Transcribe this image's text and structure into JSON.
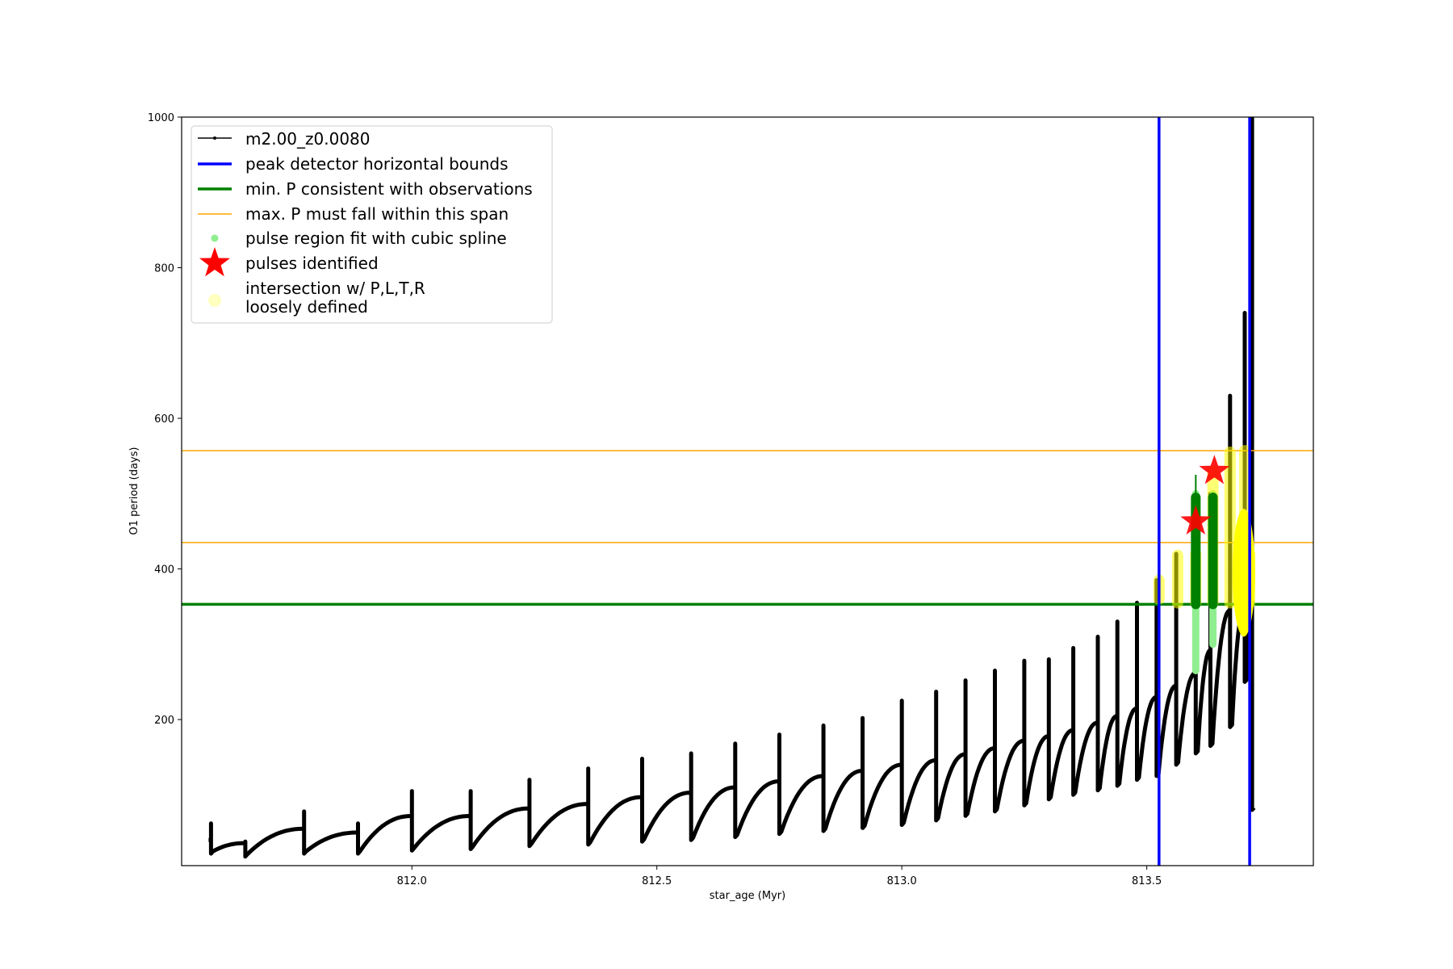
{
  "chart_data": {
    "type": "line",
    "xlabel": "star_age (Myr)",
    "ylabel": "O1 period (days)",
    "xlim": [
      811.53,
      813.84
    ],
    "ylim": [
      6,
      1000
    ],
    "x_ticks": [
      812.0,
      812.5,
      813.0,
      813.5
    ],
    "x_tick_labels": [
      "812.0",
      "812.5",
      "813.0",
      "813.5"
    ],
    "y_ticks": [
      200,
      400,
      600,
      800,
      1000
    ],
    "y_tick_labels": [
      "200",
      "400",
      "600",
      "800",
      "1000"
    ],
    "grid": false,
    "legend_position": "upper-left",
    "legend": [
      {
        "label": "m2.00_z0.0080",
        "kind": "line-marker",
        "color": "#000000"
      },
      {
        "label": "peak detector horizontal bounds",
        "kind": "line",
        "color": "#0000ff"
      },
      {
        "label": "min. P consistent with observations",
        "kind": "line",
        "color": "#008000"
      },
      {
        "label": "max. P must fall within this span",
        "kind": "thin-line",
        "color": "#ffa500"
      },
      {
        "label": "pulse region fit with cubic spline",
        "kind": "dot",
        "color": "#90ee90"
      },
      {
        "label": "pulses identified",
        "kind": "star",
        "color": "#ff0000"
      },
      {
        "label_lines": [
          "intersection w/ P,L,T,R",
          "loosely defined"
        ],
        "kind": "dot",
        "color": "#ffffc0"
      }
    ],
    "series_name": "m2.00_z0.0080",
    "pulses": [
      {
        "x": 811.59,
        "base": 40,
        "min": 22,
        "peak": 62,
        "end": 35
      },
      {
        "x": 811.66,
        "base": 36,
        "min": 18,
        "peak": 38,
        "end": 37
      },
      {
        "x": 811.78,
        "base": 55,
        "min": 22,
        "peak": 78,
        "end": 55
      },
      {
        "x": 811.89,
        "base": 50,
        "min": 22,
        "peak": 62,
        "end": 50
      },
      {
        "x": 812.0,
        "base": 72,
        "min": 26,
        "peak": 105,
        "end": 72
      },
      {
        "x": 812.12,
        "base": 72,
        "min": 28,
        "peak": 105,
        "end": 72
      },
      {
        "x": 812.24,
        "base": 82,
        "min": 32,
        "peak": 120,
        "end": 82
      },
      {
        "x": 812.36,
        "base": 88,
        "min": 34,
        "peak": 135,
        "end": 88
      },
      {
        "x": 812.47,
        "base": 97,
        "min": 38,
        "peak": 148,
        "end": 97
      },
      {
        "x": 812.57,
        "base": 103,
        "min": 40,
        "peak": 155,
        "end": 103
      },
      {
        "x": 812.66,
        "base": 110,
        "min": 44,
        "peak": 168,
        "end": 110
      },
      {
        "x": 812.75,
        "base": 118,
        "min": 48,
        "peak": 180,
        "end": 118
      },
      {
        "x": 812.84,
        "base": 125,
        "min": 52,
        "peak": 192,
        "end": 125
      },
      {
        "x": 812.92,
        "base": 132,
        "min": 56,
        "peak": 202,
        "end": 132
      },
      {
        "x": 813.0,
        "base": 140,
        "min": 60,
        "peak": 225,
        "end": 140
      },
      {
        "x": 813.07,
        "base": 146,
        "min": 66,
        "peak": 237,
        "end": 146
      },
      {
        "x": 813.13,
        "base": 154,
        "min": 72,
        "peak": 252,
        "end": 154
      },
      {
        "x": 813.19,
        "base": 162,
        "min": 78,
        "peak": 265,
        "end": 162
      },
      {
        "x": 813.25,
        "base": 172,
        "min": 86,
        "peak": 278,
        "end": 172
      },
      {
        "x": 813.3,
        "base": 178,
        "min": 94,
        "peak": 280,
        "end": 178
      },
      {
        "x": 813.35,
        "base": 186,
        "min": 100,
        "peak": 295,
        "end": 186
      },
      {
        "x": 813.4,
        "base": 196,
        "min": 106,
        "peak": 310,
        "end": 196
      },
      {
        "x": 813.44,
        "base": 205,
        "min": 112,
        "peak": 330,
        "end": 205
      },
      {
        "x": 813.48,
        "base": 215,
        "min": 120,
        "peak": 355,
        "end": 215
      },
      {
        "x": 813.52,
        "base": 230,
        "min": 125,
        "peak": 385,
        "end": 230
      },
      {
        "x": 813.56,
        "base": 245,
        "min": 140,
        "peak": 420,
        "end": 245
      },
      {
        "x": 813.6,
        "base": 262,
        "min": 155,
        "peak": 500,
        "end": 262
      },
      {
        "x": 813.63,
        "base": 292,
        "min": 165,
        "peak": 500,
        "end": 292
      },
      {
        "x": 813.67,
        "base": 345,
        "min": 190,
        "peak": 630,
        "end": 340
      },
      {
        "x": 813.7,
        "base": 350,
        "min": 250,
        "peak": 740,
        "end": 350
      },
      {
        "x": 813.715,
        "base": 350,
        "min": 80,
        "peak": 1000,
        "end": 300
      }
    ],
    "start_x": 811.585,
    "peak_detector_bounds_x": [
      813.525,
      813.71
    ],
    "min_period": 353,
    "max_period_span": [
      435,
      557
    ],
    "spline_regions": [
      {
        "x": 813.6,
        "ymin": 265,
        "ymax": 500
      },
      {
        "x": 813.635,
        "ymin": 300,
        "ymax": 500
      }
    ],
    "spline_dark_regions": [
      {
        "x": 813.6,
        "ymin": 353,
        "ymax": 495,
        "tip": 525
      },
      {
        "x": 813.635,
        "ymin": 353,
        "ymax": 495
      }
    ],
    "intersection_regions": [
      {
        "x": 813.525,
        "ymin": 360,
        "ymax": 385
      },
      {
        "x": 813.563,
        "ymin": 355,
        "ymax": 418
      },
      {
        "x": 813.6,
        "ymin": 355,
        "ymax": 420
      },
      {
        "x": 813.635,
        "ymin": 355,
        "ymax": 530
      },
      {
        "x": 813.67,
        "ymin": 355,
        "ymax": 555
      },
      {
        "x": 813.7,
        "ymin": 355,
        "ymax": 557
      },
      {
        "x": 813.71,
        "ymin": 355,
        "ymax": 420
      }
    ],
    "pulses_identified": [
      {
        "x": 813.6,
        "y": 463
      },
      {
        "x": 813.638,
        "y": 530
      }
    ]
  }
}
